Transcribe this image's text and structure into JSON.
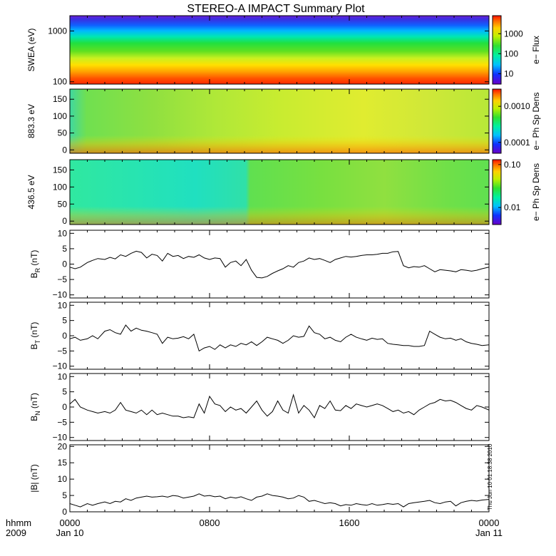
{
  "title": "STEREO-A IMPACT Summary Plot",
  "timestamp": "Thu Jun 10 01:18:38 2010",
  "time_axis": {
    "ticks": [
      {
        "hhmm": "0000",
        "date": "Jan 10",
        "hour": 0
      },
      {
        "hhmm": "0800",
        "date": "",
        "hour": 8
      },
      {
        "hhmm": "1600",
        "date": "",
        "hour": 16
      },
      {
        "hhmm": "0000",
        "date": "Jan 11",
        "hour": 24
      }
    ],
    "corner_line1": "hhmm",
    "corner_line2": "2009",
    "range_hours": [
      0,
      24
    ]
  },
  "chart_data": [
    {
      "type": "heatmap",
      "name": "swea",
      "ylabel": "SWEA (eV)",
      "ylim": [
        90,
        2000
      ],
      "yscale": "log",
      "yticks": [
        {
          "v": 100,
          "label": "100"
        },
        {
          "v": 1000,
          "label": "1000"
        }
      ],
      "colorbar": {
        "label": "e− Flux",
        "scale": "log",
        "range": [
          3,
          8000
        ],
        "ticks": [
          {
            "v": 10,
            "label": "10"
          },
          {
            "v": 100,
            "label": "100"
          },
          {
            "v": 1000,
            "label": "1000"
          }
        ]
      }
    },
    {
      "type": "heatmap",
      "name": "pad883",
      "ylabel": "883.3 eV",
      "ylim": [
        -10,
        180
      ],
      "yscale": "linear",
      "yticks": [
        {
          "v": 0,
          "label": "0"
        },
        {
          "v": 50,
          "label": "50"
        },
        {
          "v": 100,
          "label": "100"
        },
        {
          "v": 150,
          "label": "150"
        }
      ],
      "colorbar": {
        "label": "e− Ph Sp Dens",
        "scale": "log",
        "range": [
          5e-05,
          0.003
        ],
        "ticks": [
          {
            "v": 0.0001,
            "label": "0.0001"
          },
          {
            "v": 0.001,
            "label": "0.0010"
          }
        ]
      }
    },
    {
      "type": "heatmap",
      "name": "pad436",
      "ylabel": "436.5 eV",
      "ylim": [
        -10,
        180
      ],
      "yscale": "linear",
      "yticks": [
        {
          "v": 0,
          "label": "0"
        },
        {
          "v": 50,
          "label": "50"
        },
        {
          "v": 100,
          "label": "100"
        },
        {
          "v": 150,
          "label": "150"
        }
      ],
      "colorbar": {
        "label": "e− Ph Sp Dens",
        "scale": "log",
        "range": [
          0.004,
          0.13
        ],
        "ticks": [
          {
            "v": 0.01,
            "label": "0.01"
          },
          {
            "v": 0.1,
            "label": "0.10"
          }
        ]
      }
    },
    {
      "type": "line",
      "name": "br",
      "ylabel_main": "B",
      "ylabel_sub": "R",
      "ylabel_unit": "(nT)",
      "ylim": [
        -11,
        11
      ],
      "yticks": [
        {
          "v": -10,
          "label": "−10"
        },
        {
          "v": -5,
          "label": "−5"
        },
        {
          "v": 0,
          "label": "0"
        },
        {
          "v": 5,
          "label": "5"
        },
        {
          "v": 10,
          "label": "10"
        }
      ],
      "x": [
        0,
        0.3,
        0.6,
        1,
        1.3,
        1.6,
        2,
        2.3,
        2.6,
        2.9,
        3.2,
        3.5,
        3.8,
        4.1,
        4.4,
        4.7,
        5,
        5.3,
        5.6,
        5.9,
        6.2,
        6.5,
        6.8,
        7.1,
        7.4,
        7.7,
        8,
        8.3,
        8.6,
        8.9,
        9.2,
        9.5,
        9.8,
        10.1,
        10.4,
        10.7,
        11,
        11.3,
        11.6,
        11.9,
        12.2,
        12.5,
        12.8,
        13.1,
        13.4,
        13.7,
        14,
        14.3,
        14.6,
        14.9,
        15.2,
        15.5,
        15.8,
        16.1,
        16.4,
        16.7,
        17,
        17.3,
        17.6,
        17.9,
        18.2,
        18.5,
        18.8,
        19.1,
        19.4,
        19.7,
        20,
        20.3,
        20.6,
        20.9,
        21.2,
        21.5,
        21.8,
        22.1,
        22.4,
        22.7,
        23,
        23.3,
        23.6,
        24
      ],
      "y": [
        -1,
        -1.5,
        -1,
        0.5,
        1.2,
        1.8,
        1.5,
        2.2,
        1.7,
        3,
        2.5,
        3.5,
        4.2,
        3.8,
        2,
        3.2,
        2.8,
        1,
        3.5,
        2.5,
        2.8,
        1.8,
        2.5,
        2.2,
        3,
        2,
        1.5,
        2,
        1.8,
        -1,
        0.5,
        1,
        -0.5,
        1.5,
        -2,
        -4.3,
        -4.5,
        -4,
        -3,
        -2.2,
        -1.5,
        -0.5,
        -1,
        0.5,
        1,
        2,
        1.5,
        1.8,
        1.2,
        0.5,
        1.5,
        2,
        2.5,
        2.3,
        2.5,
        2.8,
        3,
        3,
        3.2,
        3.5,
        3.5,
        4,
        4.1,
        -0.5,
        -1.2,
        -0.8,
        -1,
        -0.5,
        -1.5,
        -2.5,
        -1.8,
        -2,
        -2.2,
        -2.5,
        -1.8,
        -2,
        -2.3,
        -2,
        -1.5,
        -1
      ]
    },
    {
      "type": "line",
      "name": "bt",
      "ylabel_main": "B",
      "ylabel_sub": "T",
      "ylabel_unit": "(nT)",
      "ylim": [
        -11,
        11
      ],
      "yticks": [
        {
          "v": -10,
          "label": "−10"
        },
        {
          "v": -5,
          "label": "−5"
        },
        {
          "v": 0,
          "label": "0"
        },
        {
          "v": 5,
          "label": "5"
        },
        {
          "v": 10,
          "label": "10"
        }
      ],
      "x": [
        0,
        0.3,
        0.6,
        1,
        1.3,
        1.6,
        2,
        2.3,
        2.6,
        2.9,
        3.2,
        3.5,
        3.8,
        4.1,
        4.4,
        4.7,
        5,
        5.3,
        5.6,
        5.9,
        6.2,
        6.5,
        6.8,
        7.1,
        7.4,
        7.7,
        8,
        8.3,
        8.6,
        8.9,
        9.2,
        9.5,
        9.8,
        10.1,
        10.4,
        10.7,
        11,
        11.3,
        11.6,
        11.9,
        12.2,
        12.5,
        12.8,
        13.1,
        13.4,
        13.7,
        14,
        14.3,
        14.6,
        14.9,
        15.2,
        15.5,
        15.8,
        16.1,
        16.4,
        16.7,
        17,
        17.3,
        17.6,
        17.9,
        18.2,
        18.5,
        18.8,
        19.1,
        19.4,
        19.7,
        20,
        20.3,
        20.6,
        20.9,
        21.2,
        21.5,
        21.8,
        22.1,
        22.4,
        22.7,
        23,
        23.3,
        23.6,
        24
      ],
      "y": [
        -1,
        -0.5,
        -1.5,
        -1,
        0,
        -1,
        1.5,
        2,
        1,
        0.5,
        3.5,
        1.5,
        2.5,
        1.8,
        1.5,
        1,
        0.5,
        -2.5,
        -0.5,
        -1,
        -0.8,
        -0.3,
        -1,
        0.5,
        -5,
        -4,
        -3.5,
        -4.5,
        -3,
        -4,
        -3,
        -3.5,
        -2.5,
        -3,
        -2,
        -3.2,
        -2,
        -0.5,
        -1,
        -1.5,
        -2.5,
        -1.5,
        0,
        -0.5,
        -0.2,
        3.2,
        1,
        0.5,
        -1,
        -0.5,
        -1.5,
        -2,
        -0.5,
        0.5,
        -0.5,
        -1,
        -1.5,
        -0.8,
        -1.2,
        -1,
        -2.5,
        -2.8,
        -3,
        -3.2,
        -3.2,
        -3.5,
        -3.5,
        -3.2,
        1.5,
        0.5,
        -0.5,
        -1,
        -0.8,
        -1.5,
        -1,
        -2,
        -2.5,
        -2.8,
        -3.2,
        -3
      ]
    },
    {
      "type": "line",
      "name": "bn",
      "ylabel_main": "B",
      "ylabel_sub": "N",
      "ylabel_unit": "(nT)",
      "ylim": [
        -11,
        11
      ],
      "yticks": [
        {
          "v": -10,
          "label": "−10"
        },
        {
          "v": -5,
          "label": "−5"
        },
        {
          "v": 0,
          "label": "0"
        },
        {
          "v": 5,
          "label": "5"
        },
        {
          "v": 10,
          "label": "10"
        }
      ],
      "x": [
        0,
        0.3,
        0.6,
        1,
        1.3,
        1.6,
        2,
        2.3,
        2.6,
        2.9,
        3.2,
        3.5,
        3.8,
        4.1,
        4.4,
        4.7,
        5,
        5.3,
        5.6,
        5.9,
        6.2,
        6.5,
        6.8,
        7.1,
        7.4,
        7.7,
        8,
        8.3,
        8.6,
        8.9,
        9.2,
        9.5,
        9.8,
        10.1,
        10.4,
        10.7,
        11,
        11.3,
        11.6,
        11.9,
        12.2,
        12.5,
        12.8,
        13.1,
        13.4,
        13.7,
        14,
        14.3,
        14.6,
        14.9,
        15.2,
        15.5,
        15.8,
        16.1,
        16.4,
        16.7,
        17,
        17.3,
        17.6,
        17.9,
        18.2,
        18.5,
        18.8,
        19.1,
        19.4,
        19.7,
        20,
        20.3,
        20.6,
        20.9,
        21.2,
        21.5,
        21.8,
        22.1,
        22.4,
        22.7,
        23,
        23.3,
        23.6,
        24
      ],
      "y": [
        1,
        2.5,
        0,
        -1,
        -1.5,
        -2,
        -1.5,
        -2,
        -1,
        1.5,
        -1,
        -1.5,
        -2,
        -1,
        -2.5,
        -1,
        -2.5,
        -2,
        -2.5,
        -3,
        -3,
        -3.5,
        -3.2,
        -3.5,
        1,
        -2,
        3.5,
        1,
        0.5,
        -1.5,
        0,
        -1,
        -0.5,
        -2,
        0,
        2,
        -1,
        -3,
        -1.5,
        2,
        -1,
        -2,
        4,
        -2,
        0.5,
        -1,
        -3.5,
        0.5,
        -0.5,
        2,
        -1,
        -1.2,
        0.5,
        -0.5,
        1,
        0.5,
        0,
        0.5,
        1,
        0.5,
        -0.5,
        -1.5,
        -1,
        -2,
        -1.5,
        -2.5,
        -1,
        0,
        1,
        1.5,
        2.5,
        2,
        2.2,
        1.5,
        0.5,
        -0.5,
        -1,
        0.5,
        0,
        -1
      ]
    },
    {
      "type": "line",
      "name": "bmag",
      "ylabel_main": "|B| (nT)",
      "ylabel_sub": "",
      "ylabel_unit": "",
      "ylim": [
        0,
        20.5
      ],
      "yticks": [
        {
          "v": 0,
          "label": "0"
        },
        {
          "v": 5,
          "label": "5"
        },
        {
          "v": 10,
          "label": "10"
        },
        {
          "v": 15,
          "label": "15"
        },
        {
          "v": 20,
          "label": "20"
        }
      ],
      "x": [
        0,
        0.3,
        0.6,
        1,
        1.3,
        1.6,
        2,
        2.3,
        2.6,
        2.9,
        3.2,
        3.5,
        3.8,
        4.1,
        4.4,
        4.7,
        5,
        5.3,
        5.6,
        5.9,
        6.2,
        6.5,
        6.8,
        7.1,
        7.4,
        7.7,
        8,
        8.3,
        8.6,
        8.9,
        9.2,
        9.5,
        9.8,
        10.1,
        10.4,
        10.7,
        11,
        11.3,
        11.6,
        11.9,
        12.2,
        12.5,
        12.8,
        13.1,
        13.4,
        13.7,
        14,
        14.3,
        14.6,
        14.9,
        15.2,
        15.5,
        15.8,
        16.1,
        16.4,
        16.7,
        17,
        17.3,
        17.6,
        17.9,
        18.2,
        18.5,
        18.8,
        19.1,
        19.4,
        19.7,
        20,
        20.3,
        20.6,
        20.9,
        21.2,
        21.5,
        21.8,
        22.1,
        22.4,
        22.7,
        23,
        23.3,
        23.6,
        24
      ],
      "y": [
        2.5,
        2,
        1.5,
        2.5,
        2,
        2.5,
        3,
        2.5,
        3.2,
        3,
        4,
        3.5,
        4.2,
        4.5,
        4.8,
        4.5,
        4.6,
        4.8,
        4.5,
        5,
        4.8,
        4.2,
        4.5,
        4.8,
        5.5,
        4.8,
        5,
        4.6,
        4.8,
        4,
        4.5,
        4.2,
        4.6,
        4,
        3.5,
        4.5,
        4.8,
        5.5,
        5,
        4.8,
        4.5,
        4,
        4.2,
        5,
        4.5,
        3.2,
        3.5,
        3,
        2.5,
        2.8,
        2.5,
        1.8,
        2.2,
        2,
        2.5,
        2.2,
        2,
        2.5,
        2,
        2.2,
        2.5,
        2.3,
        2.5,
        1.5,
        2.5,
        2.8,
        3,
        3.2,
        3.5,
        2.8,
        2.5,
        3,
        3.2,
        1.8,
        2.8,
        3.2,
        3.5,
        3.3,
        3.6,
        3.8
      ]
    }
  ]
}
